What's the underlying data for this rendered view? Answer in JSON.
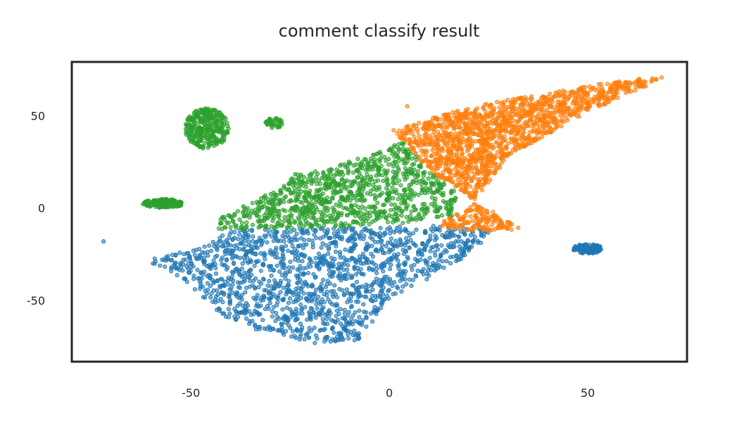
{
  "chart_data": {
    "type": "scatter",
    "title": "comment classify result",
    "xlabel": "",
    "ylabel": "",
    "xlim": [
      -80,
      75
    ],
    "ylim": [
      -83,
      79
    ],
    "x_ticks": [
      -50,
      0,
      50
    ],
    "y_ticks": [
      -50,
      0,
      50
    ],
    "x_tick_labels": [
      "-50",
      "0",
      "50"
    ],
    "y_tick_labels": [
      "-50",
      "0",
      "50"
    ],
    "grid": false,
    "legend": "none",
    "colors": [
      "#1f77b4",
      "#ff7f0e",
      "#2ca02c"
    ],
    "series": [
      {
        "clusters": [
          {
            "shape": "polygon",
            "n": 1500,
            "polygon": [
              [
                -62,
                -28
              ],
              [
                -46,
                -20
              ],
              [
                -40,
                -12
              ],
              [
                0,
                -10
              ],
              [
                15,
                -9
              ],
              [
                27,
                -12
              ],
              [
                18,
                -28
              ],
              [
                0,
                -50
              ],
              [
                -8,
                -72
              ],
              [
                -20,
                -73
              ],
              [
                -40,
                -62
              ],
              [
                -47,
                -48
              ],
              [
                -52,
                -38
              ]
            ]
          },
          {
            "shape": "ellipse",
            "cx": 50,
            "cy": -22,
            "rx": 3.7,
            "ry": 2.6,
            "n": 120
          },
          {
            "shape": "points",
            "x": [
              -72
            ],
            "y": [
              -18
            ]
          }
        ]
      },
      {
        "clusters": [
          {
            "shape": "polygon",
            "n": 1700,
            "polygon": [
              [
                1,
                42
              ],
              [
                12,
                50
              ],
              [
                25,
                57
              ],
              [
                40,
                62
              ],
              [
                55,
                68
              ],
              [
                69,
                71
              ],
              [
                64,
                65
              ],
              [
                50,
                52
              ],
              [
                40,
                40
              ],
              [
                30,
                28
              ],
              [
                20,
                0
              ],
              [
                15,
                -5
              ],
              [
                12,
                -10
              ],
              [
                20,
                -12
              ],
              [
                34,
                -12
              ],
              [
                23,
                2
              ],
              [
                10,
                20
              ]
            ]
          },
          {
            "shape": "points",
            "x": [
              4.5
            ],
            "y": [
              55
            ]
          }
        ]
      },
      {
        "clusters": [
          {
            "shape": "polygon",
            "n": 1000,
            "polygon": [
              [
                -44,
                -12
              ],
              [
                -42,
                -4
              ],
              [
                -35,
                3
              ],
              [
                -28,
                10
              ],
              [
                -25,
                18
              ],
              [
                -15,
                22
              ],
              [
                -8,
                27
              ],
              [
                0,
                32
              ],
              [
                3,
                38
              ],
              [
                1,
                42
              ],
              [
                10,
                20
              ],
              [
                17,
                8
              ],
              [
                16,
                -4
              ],
              [
                4,
                -8
              ],
              [
                -10,
                -10
              ],
              [
                -30,
                -11
              ]
            ]
          },
          {
            "shape": "ellipse",
            "cx": -46,
            "cy": 43,
            "rx": 5.5,
            "ry": 11,
            "n": 300
          },
          {
            "shape": "ellipse",
            "cx": -29,
            "cy": 46,
            "rx": 2.4,
            "ry": 2.8,
            "n": 40
          },
          {
            "shape": "ellipse",
            "cx": -57,
            "cy": 2.5,
            "rx": 5.2,
            "ry": 2.4,
            "n": 160
          }
        ]
      }
    ]
  }
}
